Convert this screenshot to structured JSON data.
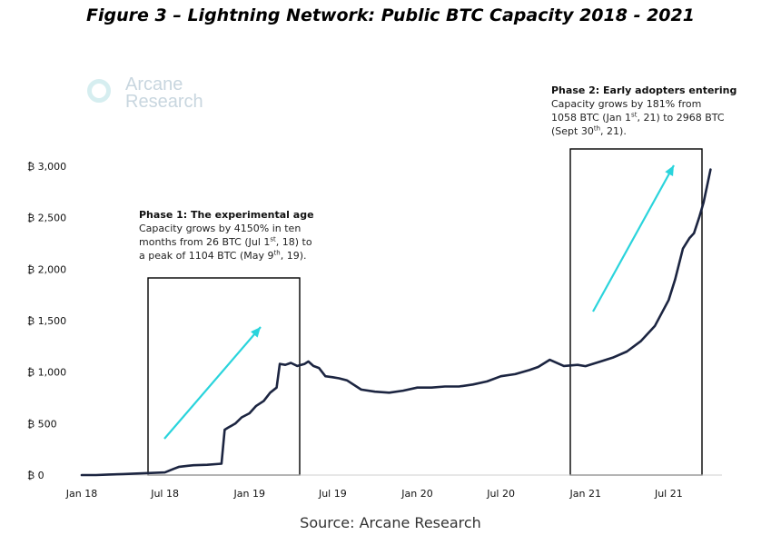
{
  "title": "Figure 3 – Lightning Network: Public BTC Capacity 2018 - 2021",
  "logo": {
    "line1": "Arcane",
    "line2": "Research"
  },
  "source": "Source: Arcane Research",
  "phase1": {
    "heading": "Phase 1: The experimental age",
    "line1": "Capacity grows by 4150% in ten",
    "line2a": "months from 26 BTC (Jul 1",
    "line2sup": "st",
    "line2b": ", 18) to",
    "line3a": "a peak of 1104 BTC (May 9",
    "line3sup": "th",
    "line3b": ", 19)."
  },
  "phase2": {
    "heading": "Phase 2: Early adopters entering",
    "line1": "Capacity grows by 181% from",
    "line2a": "1058 BTC (Jan 1",
    "line2sup": "st",
    "line2b": ", 21) to 2968 BTC",
    "line3a": "(Sept 30",
    "line3sup": "th",
    "line3b": ", 21)."
  },
  "colors": {
    "line": "#1c2541",
    "arrow": "#2ad4dc",
    "box": "#000000"
  },
  "chart_data": {
    "type": "line",
    "title": "Figure 3 – Lightning Network: Public BTC Capacity 2018 - 2021",
    "xlabel": "",
    "ylabel": "",
    "ylim": [
      0,
      3000
    ],
    "xlim": [
      "2018-01-01",
      "2021-10-15"
    ],
    "grid": false,
    "legend": "none",
    "y_ticks": [
      "₿ 0",
      "₿ 500",
      "₿ 1,000",
      "₿ 1,500",
      "₿ 2,000",
      "₿ 2,500",
      "₿ 3,000"
    ],
    "y_tick_values": [
      0,
      500,
      1000,
      1500,
      2000,
      2500,
      3000
    ],
    "x_ticks": [
      "Jan 18",
      "Jul 18",
      "Jan 19",
      "Jul 19",
      "Jan 20",
      "Jul 20",
      "Jan 21",
      "Jul 21"
    ],
    "x_tick_dates": [
      "2018-01-01",
      "2018-07-01",
      "2019-01-01",
      "2019-07-01",
      "2020-01-01",
      "2020-07-01",
      "2021-01-01",
      "2021-07-01"
    ],
    "series": [
      {
        "x": [
          "2018-01-01",
          "2018-02-01",
          "2018-03-01",
          "2018-04-01",
          "2018-05-01",
          "2018-06-01",
          "2018-07-01",
          "2018-07-20",
          "2018-08-01",
          "2018-08-20",
          "2018-09-01",
          "2018-10-01",
          "2018-11-01",
          "2018-11-08",
          "2018-11-15",
          "2018-12-01",
          "2018-12-15",
          "2019-01-01",
          "2019-01-15",
          "2019-02-01",
          "2019-02-15",
          "2019-03-01",
          "2019-03-08",
          "2019-03-20",
          "2019-04-01",
          "2019-04-15",
          "2019-05-01",
          "2019-05-09",
          "2019-05-20",
          "2019-06-01",
          "2019-06-15",
          "2019-07-01",
          "2019-07-15",
          "2019-08-01",
          "2019-09-01",
          "2019-10-01",
          "2019-11-01",
          "2019-12-01",
          "2020-01-01",
          "2020-02-01",
          "2020-03-01",
          "2020-04-01",
          "2020-05-01",
          "2020-06-01",
          "2020-07-01",
          "2020-08-01",
          "2020-09-01",
          "2020-09-20",
          "2020-10-15",
          "2020-11-15",
          "2020-12-15",
          "2021-01-01",
          "2021-02-01",
          "2021-03-01",
          "2021-04-01",
          "2021-05-01",
          "2021-06-01",
          "2021-07-01",
          "2021-07-15",
          "2021-08-01",
          "2021-08-15",
          "2021-08-25",
          "2021-09-05",
          "2021-09-15",
          "2021-09-22",
          "2021-09-30"
        ],
        "y": [
          0,
          0,
          5,
          10,
          15,
          20,
          26,
          60,
          80,
          90,
          95,
          100,
          110,
          440,
          460,
          500,
          560,
          600,
          670,
          720,
          800,
          850,
          1080,
          1070,
          1090,
          1060,
          1080,
          1104,
          1060,
          1040,
          960,
          950,
          940,
          920,
          830,
          810,
          800,
          820,
          850,
          850,
          860,
          860,
          880,
          910,
          960,
          980,
          1020,
          1050,
          1120,
          1060,
          1070,
          1058,
          1100,
          1140,
          1200,
          1300,
          1450,
          1700,
          1900,
          2200,
          2300,
          2350,
          2500,
          2650,
          2800,
          2968
        ]
      }
    ]
  }
}
